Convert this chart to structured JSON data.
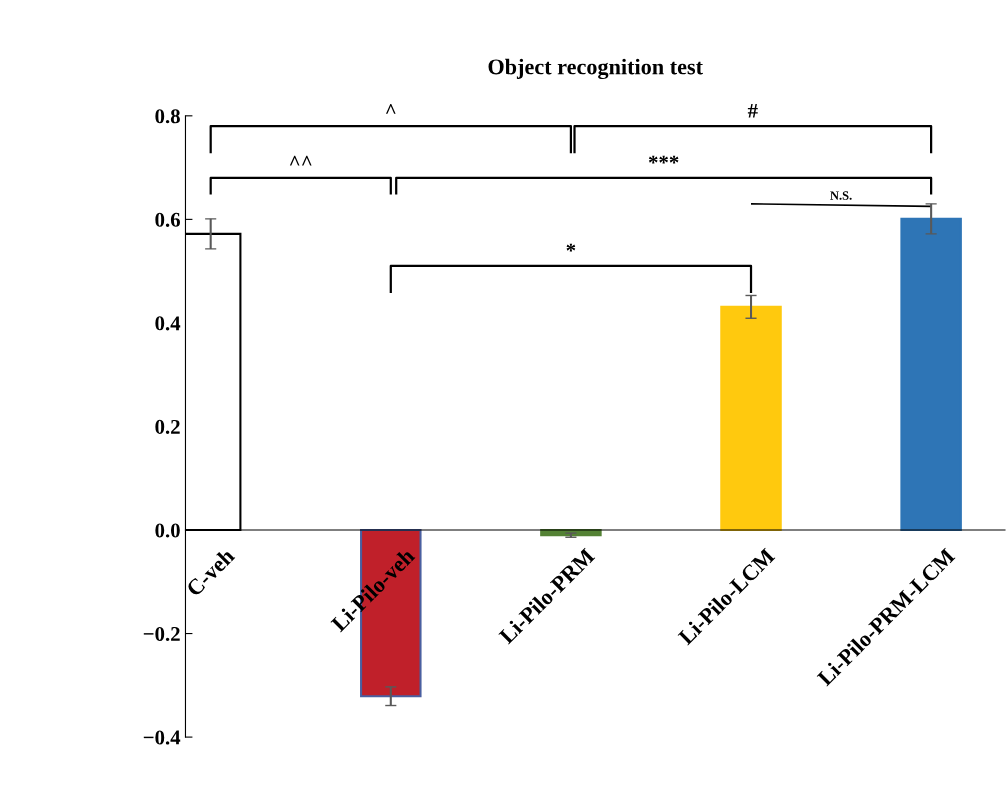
{
  "chart_data": {
    "type": "bar",
    "title": "Object recognition test",
    "categories": [
      "C-veh",
      "Li-Pilo-veh",
      "Li-Pilo-PRM",
      "Li-Pilo-LCM",
      "Li-Pilo-PRM-LCM"
    ],
    "values": [
      0.572,
      -0.321,
      -0.01,
      0.431,
      0.601
    ],
    "errors": [
      0.029,
      0.018,
      0.004,
      0.022,
      0.029
    ],
    "colors": [
      "#ffffff",
      "#c0202a",
      "#548235",
      "#ffc90e",
      "#2e75b6"
    ],
    "ylim": [
      -0.4,
      0.8
    ],
    "yticks": [
      {
        "value": -0.4,
        "label": "−0.4"
      },
      {
        "value": -0.2,
        "label": "−0.2"
      },
      {
        "value": 0,
        "label": "0.0"
      },
      {
        "value": 0.2,
        "label": "0.2"
      },
      {
        "value": 0.4,
        "label": "0.4"
      },
      {
        "value": 0.6,
        "label": "0.6"
      },
      {
        "value": 0.8,
        "label": "0.8"
      }
    ],
    "annotations": [
      "^",
      "#",
      "^^",
      "***",
      "N.S.",
      "*"
    ],
    "grid": false,
    "legend": false
  }
}
